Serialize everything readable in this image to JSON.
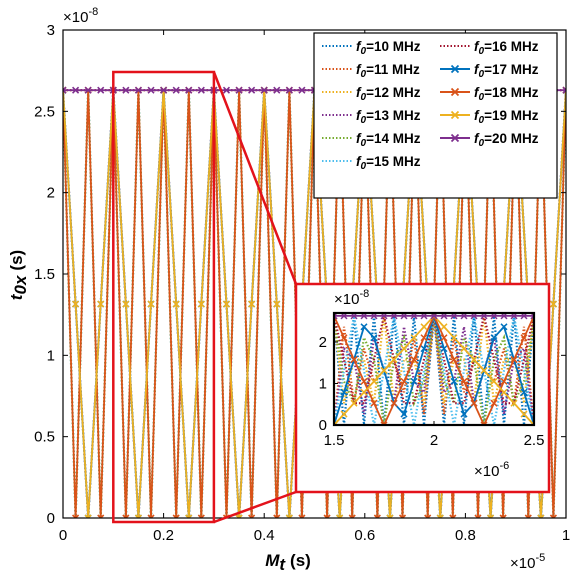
{
  "chart_data": [
    {
      "type": "line",
      "panel": "main",
      "xlabel": "M",
      "xlabel_sub": "t",
      "xlabel_unit": "(s)",
      "ylabel": "t",
      "ylabel_sub": "0x",
      "ylabel_unit": "(s)",
      "xlim": [
        0,
        1
      ],
      "ylim": [
        0,
        3
      ],
      "x_scale_label": "×10",
      "x_scale_exp": "-5",
      "y_scale_label": "×10",
      "y_scale_exp": "-8",
      "x_ticks": [
        "0",
        "0.2",
        "0.4",
        "0.6",
        "0.8",
        "1"
      ],
      "y_ticks": [
        "0",
        "0.5",
        "1",
        "1.5",
        "2",
        "2.5",
        "3"
      ],
      "legend_placement": "top-right",
      "series": [
        {
          "name": "f0=10 MHz",
          "name_main": "f",
          "name_sub": "0",
          "name_rest": "=10 MHz",
          "color": "#0072BD",
          "style": "dotted",
          "marker": "none",
          "f_MHz": 10
        },
        {
          "name": "f0=11 MHz",
          "name_main": "f",
          "name_sub": "0",
          "name_rest": "=11 MHz",
          "color": "#D95319",
          "style": "dotted",
          "marker": "none",
          "f_MHz": 11
        },
        {
          "name": "f0=12 MHz",
          "name_main": "f",
          "name_sub": "0",
          "name_rest": "=12 MHz",
          "color": "#EDB120",
          "style": "dotted",
          "marker": "none",
          "f_MHz": 12
        },
        {
          "name": "f0=13 MHz",
          "name_main": "f",
          "name_sub": "0",
          "name_rest": "=13 MHz",
          "color": "#7E2F8E",
          "style": "dotted",
          "marker": "none",
          "f_MHz": 13
        },
        {
          "name": "f0=14 MHz",
          "name_main": "f",
          "name_sub": "0",
          "name_rest": "=14 MHz",
          "color": "#77AC30",
          "style": "dotted",
          "marker": "none",
          "f_MHz": 14
        },
        {
          "name": "f0=15 MHz",
          "name_main": "f",
          "name_sub": "0",
          "name_rest": "=15 MHz",
          "color": "#4DBEEE",
          "style": "dotted",
          "marker": "none",
          "f_MHz": 15
        },
        {
          "name": "f0=16 MHz",
          "name_main": "f",
          "name_sub": "0",
          "name_rest": "=16 MHz",
          "color": "#A2142F",
          "style": "dotted",
          "marker": "none",
          "f_MHz": 16
        },
        {
          "name": "f0=17 MHz",
          "name_main": "f",
          "name_sub": "0",
          "name_rest": "=17 MHz",
          "color": "#0072BD",
          "style": "solid",
          "marker": "x",
          "f_MHz": 17
        },
        {
          "name": "f0=18 MHz",
          "name_main": "f",
          "name_sub": "0",
          "name_rest": "=18 MHz",
          "color": "#D95319",
          "style": "solid",
          "marker": "x",
          "f_MHz": 18
        },
        {
          "name": "f0=19 MHz",
          "name_main": "f",
          "name_sub": "0",
          "name_rest": "=19 MHz",
          "color": "#EDB120",
          "style": "solid",
          "marker": "x",
          "f_MHz": 19
        },
        {
          "name": "f0=20 MHz",
          "name_main": "f",
          "name_sub": "0",
          "name_rest": "=20 MHz",
          "color": "#7E2F8E",
          "style": "solid",
          "marker": "x",
          "f_MHz": 20
        }
      ],
      "model": "t0x = (1 - {M*f0}) / f0, sampled every 1/(f0_max) ... sawtooth in M with period 1/f0",
      "peak_value": 2.63,
      "sample_step": 0.025
    },
    {
      "type": "line",
      "panel": "inset",
      "xlim": [
        1.5,
        2.5
      ],
      "ylim": [
        0,
        2.7
      ],
      "x_ticks": [
        "1.5",
        "2",
        "2.5"
      ],
      "y_ticks": [
        "0",
        "1",
        "2"
      ],
      "x_scale_label": "×10",
      "x_scale_exp": "-6",
      "y_scale_label": "×10",
      "y_scale_exp": "-8",
      "zoom_region_x": [
        0.1,
        0.3
      ],
      "zoom_region_y": [
        0,
        2.63
      ]
    }
  ]
}
